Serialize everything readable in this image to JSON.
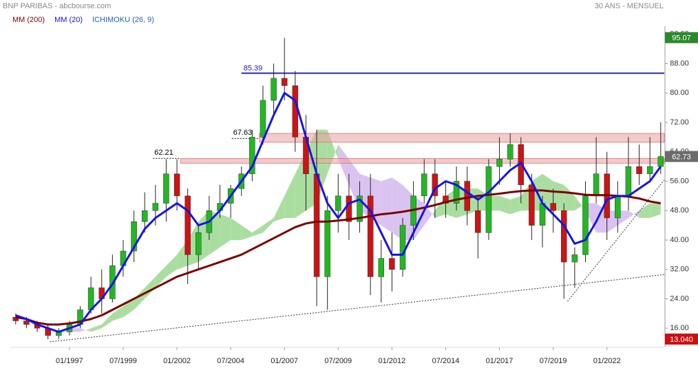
{
  "chart_data": {
    "type": "candlestick",
    "title": "BNP PARIBAS - abcbourse.com",
    "subtitle": "30 ANS - MENSUEL",
    "x": [
      "07/1994",
      "01/1995",
      "07/1995",
      "01/1996",
      "07/1996",
      "01/1997",
      "07/1997",
      "01/1998",
      "07/1998",
      "01/1999",
      "07/1999",
      "01/2000",
      "07/2000",
      "01/2001",
      "07/2001",
      "01/2002",
      "07/2002",
      "01/2003",
      "07/2003",
      "01/2004",
      "07/2004",
      "01/2005",
      "07/2005",
      "01/2006",
      "07/2006",
      "01/2007",
      "07/2007",
      "01/2008",
      "07/2008",
      "01/2009",
      "07/2009",
      "01/2010",
      "07/2010",
      "01/2011",
      "07/2011",
      "01/2012",
      "07/2012",
      "01/2013",
      "07/2013",
      "01/2014",
      "07/2014",
      "01/2015",
      "07/2015",
      "01/2016",
      "07/2016",
      "01/2017",
      "07/2017",
      "01/2018",
      "07/2018",
      "01/2019",
      "07/2019",
      "01/2020",
      "07/2020",
      "01/2021",
      "07/2021",
      "01/2022",
      "07/2022",
      "01/2023",
      "07/2023",
      "01/2024",
      "07/2024"
    ],
    "open": [
      19,
      18,
      17,
      16,
      14,
      15,
      17,
      21,
      27,
      24,
      33,
      37,
      45,
      48,
      50,
      58,
      52,
      36,
      42,
      48,
      50,
      54,
      58,
      68,
      78,
      84,
      82,
      68,
      58,
      30,
      48,
      52,
      45,
      52,
      30,
      35,
      32,
      44,
      52,
      58,
      52,
      50,
      56,
      48,
      42,
      60,
      62,
      66,
      55,
      44,
      50,
      48,
      34,
      36,
      52,
      58,
      46,
      52,
      60,
      58,
      60
    ],
    "high": [
      20,
      19,
      18,
      17,
      16,
      18,
      22,
      30,
      32,
      36,
      40,
      48,
      53,
      55,
      62,
      62,
      54,
      44,
      52,
      55,
      55,
      60,
      70,
      82,
      88,
      95,
      86,
      74,
      70,
      52,
      58,
      58,
      56,
      58,
      40,
      42,
      46,
      56,
      62,
      62,
      56,
      60,
      60,
      52,
      62,
      68,
      69,
      68,
      58,
      52,
      54,
      50,
      38,
      56,
      68,
      64,
      56,
      68,
      66,
      68,
      72
    ],
    "low": [
      17,
      16,
      15,
      13,
      13,
      14,
      16,
      20,
      20,
      23,
      30,
      34,
      42,
      44,
      45,
      48,
      28,
      32,
      40,
      46,
      46,
      52,
      56,
      66,
      74,
      78,
      64,
      48,
      22,
      21,
      42,
      40,
      42,
      25,
      23,
      26,
      30,
      40,
      50,
      46,
      46,
      48,
      44,
      35,
      40,
      55,
      60,
      50,
      40,
      38,
      42,
      24,
      27,
      34,
      50,
      40,
      42,
      48,
      55,
      56,
      58
    ],
    "close": [
      18,
      17,
      16,
      14,
      15,
      17,
      21,
      27,
      24,
      33,
      37,
      45,
      48,
      50,
      58,
      52,
      36,
      42,
      48,
      50,
      54,
      58,
      68,
      78,
      84,
      82,
      68,
      58,
      30,
      48,
      52,
      45,
      52,
      30,
      35,
      32,
      44,
      52,
      58,
      52,
      50,
      56,
      48,
      42,
      60,
      62,
      66,
      55,
      44,
      50,
      48,
      34,
      36,
      52,
      58,
      46,
      52,
      60,
      58,
      60,
      62.73
    ],
    "up_color": "#22b822",
    "down_color": "#cc1414",
    "series": [
      {
        "name": "MM (200)",
        "color": "#7a0000",
        "values": [
          19,
          18.5,
          17.5,
          17,
          17,
          17.3,
          17.8,
          18.5,
          19.5,
          21,
          22.5,
          24,
          25.5,
          27,
          28.5,
          30,
          31,
          32,
          33,
          34,
          35,
          36,
          37.5,
          39,
          40.5,
          42,
          43.5,
          44.5,
          45,
          45,
          45.3,
          45.6,
          46,
          46.5,
          47,
          47.3,
          47.7,
          48.2,
          48.8,
          49.5,
          50.3,
          51,
          51.5,
          52,
          52.3,
          52.6,
          53,
          53.3,
          53.5,
          53.5,
          53.2,
          53,
          52.7,
          52.3,
          52.2,
          52.2,
          52,
          51.8,
          51.3,
          50.5,
          50
        ]
      },
      {
        "name": "MM (20)",
        "color": "#1414e6",
        "values": [
          19.5,
          18.5,
          17,
          16,
          15,
          16,
          17,
          21,
          24,
          28,
          33,
          38,
          43,
          46,
          48,
          50,
          48,
          44,
          45,
          48,
          52,
          56,
          60,
          67,
          74,
          80,
          78,
          68,
          58,
          50,
          46,
          50,
          51,
          48,
          42,
          36,
          36,
          42,
          48,
          54,
          56,
          55,
          53,
          51,
          53,
          56,
          59,
          61,
          56,
          50,
          47,
          44,
          39,
          40,
          45,
          51,
          52,
          52,
          54,
          56,
          60
        ]
      }
    ],
    "ichimoku": {
      "name": "ICHIMOKU (26, 9)",
      "color": "#1f5fbf",
      "up_color": "#9bd88f",
      "down_color": "#d3b8ef",
      "span_a": [
        null,
        null,
        null,
        null,
        null,
        15,
        15,
        16,
        17,
        20,
        22,
        24,
        27,
        30,
        33,
        36,
        40,
        45,
        48,
        47,
        46,
        44,
        42,
        44,
        46,
        52,
        58,
        64,
        70,
        70,
        62,
        55,
        48,
        46,
        44,
        42,
        40,
        40,
        44,
        48,
        52,
        54,
        54,
        54,
        52,
        52,
        51,
        52,
        56,
        58,
        56,
        55,
        52,
        48,
        42,
        42,
        44,
        46,
        48,
        50,
        50
      ],
      "span_b": [
        null,
        null,
        null,
        null,
        null,
        16,
        16,
        15,
        16,
        18,
        19,
        21,
        24,
        27,
        30,
        32,
        33,
        34,
        36,
        38,
        40,
        40,
        41,
        42,
        45,
        46,
        46,
        48,
        50,
        58,
        66,
        62,
        58,
        57,
        56,
        57,
        55,
        52,
        50,
        46,
        47,
        46,
        47,
        48,
        48,
        48,
        47,
        48,
        48,
        48,
        48,
        48,
        48,
        50,
        50,
        48,
        48,
        48,
        46,
        46,
        47
      ]
    },
    "levels": [
      {
        "value": 85.39,
        "start": "01/2005",
        "color": "#1a1aa8"
      }
    ],
    "zones": [
      {
        "value": 67.63,
        "low": 66.6,
        "high": 69.0,
        "start": "11/2005"
      },
      {
        "value": 62.21,
        "low": 60.9,
        "high": 62.2,
        "start": "03/2002"
      }
    ],
    "trendlines": [
      {
        "start": "02/1996",
        "start_value": 12.3,
        "end": "09/2024",
        "end_value": 30.6
      },
      {
        "start": "03/2020",
        "start_value": 23.3,
        "end": "09/2024",
        "end_value": 56.3
      }
    ],
    "badges": [
      {
        "value": 95.07,
        "color": "#2a8a2a"
      },
      {
        "value": 62.73,
        "color": "#6b6b6b"
      },
      {
        "value": {
          "value": 13.04,
          "label": "13.040"
        },
        "color": "#cc1010"
      }
    ],
    "xlim": [
      "04/1994",
      "09/2024"
    ],
    "xticks": [
      "01/1997",
      "07/1999",
      "01/2002",
      "07/2004",
      "01/2007",
      "07/2009",
      "01/2012",
      "07/2014",
      "01/2017",
      "07/2019",
      "01/2022"
    ],
    "ylim": [
      10.8,
      98.2
    ],
    "yticks": [
      {
        "value": 16,
        "label": "16.00"
      },
      {
        "value": 24,
        "label": "24.00"
      },
      {
        "value": 32,
        "label": "32.00"
      },
      {
        "value": 40,
        "label": "40.00"
      },
      {
        "value": 48,
        "label": "48.00"
      },
      {
        "value": 56,
        "label": "56.00"
      },
      {
        "value": 64,
        "label": "64.00"
      },
      {
        "value": 72,
        "label": "72.00"
      },
      {
        "value": 80,
        "label": "80.00"
      },
      {
        "value": 88,
        "label": "88.00"
      },
      {
        "value": 96,
        "label": "96.00"
      }
    ]
  }
}
